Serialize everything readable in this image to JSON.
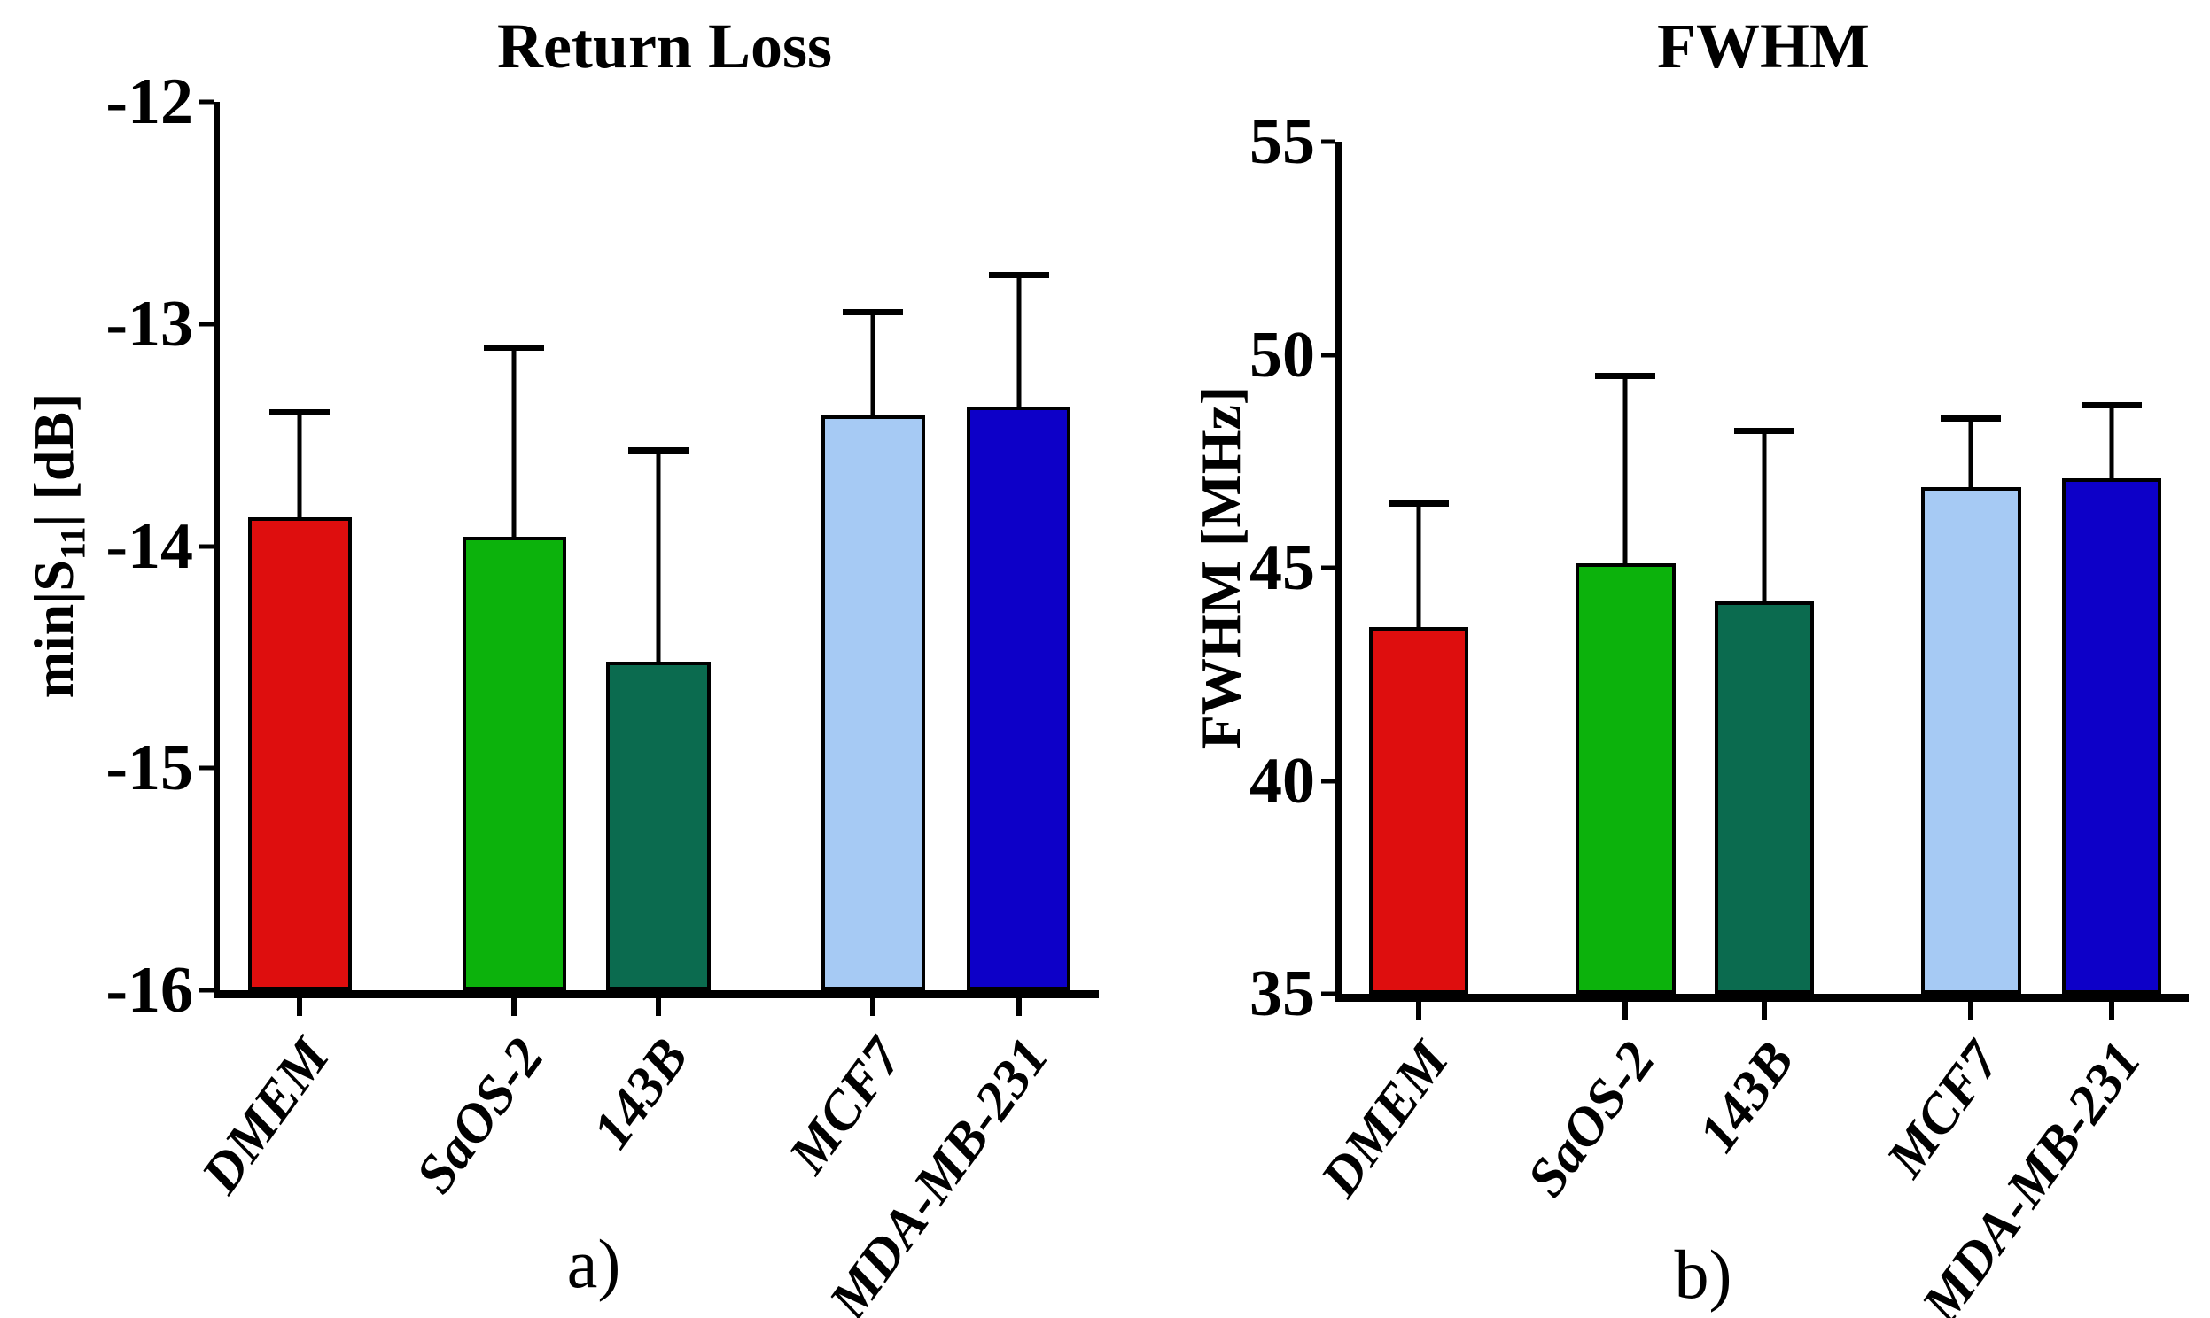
{
  "chart_data": [
    {
      "type": "bar",
      "title": "Return Loss",
      "caption": "a)",
      "xlabel": "",
      "ylabel": "min|S11| [dB]",
      "ylabel_parts": {
        "prefix": "min|S",
        "sub": "11",
        "suffix": "| [dB]"
      },
      "categories": [
        "DMEM",
        "SaOS-2",
        "143B",
        "MCF7",
        "MDA-MB-231"
      ],
      "values": [
        -13.87,
        -13.96,
        -14.52,
        -13.41,
        -13.37
      ],
      "errors_plus": [
        0.47,
        0.85,
        0.95,
        0.46,
        0.59
      ],
      "bar_colors": [
        "#DE0E0E",
        "#0CB20C",
        "#0B6B4F",
        "#A6CAF4",
        "#0D00C8"
      ],
      "ylim": [
        -16,
        -12
      ],
      "yticks": [
        -12,
        -13,
        -14,
        -15,
        -16
      ],
      "ytick_labels": [
        "-12",
        "-13",
        "-14",
        "-15",
        "-16"
      ],
      "grid": false,
      "legend": "none"
    },
    {
      "type": "bar",
      "title": "FWHM",
      "caption": "b)",
      "xlabel": "",
      "ylabel": "FWHM [MHz]",
      "categories": [
        "DMEM",
        "SaOS-2",
        "143B",
        "MCF7",
        "MDA-MB-231"
      ],
      "values": [
        43.6,
        45.1,
        44.2,
        46.9,
        47.1
      ],
      "errors_plus": [
        2.9,
        4.4,
        4.0,
        1.6,
        1.7
      ],
      "bar_colors": [
        "#DE0E0E",
        "#0CB20C",
        "#0B6B4F",
        "#A6CAF4",
        "#0D00C8"
      ],
      "ylim": [
        35,
        55
      ],
      "yticks": [
        55,
        50,
        45,
        40,
        35
      ],
      "ytick_labels": [
        "55",
        "50",
        "45",
        "40",
        "35"
      ],
      "grid": false,
      "legend": "none"
    }
  ],
  "styles": {
    "axis_color": "#000000",
    "background": "#ffffff",
    "error_bar_color": "#000000"
  }
}
